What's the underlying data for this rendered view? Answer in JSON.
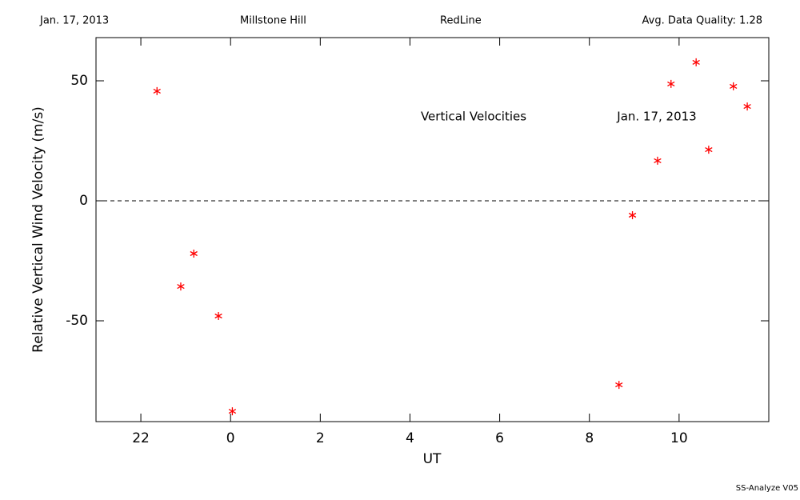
{
  "header": {
    "date": "Jan. 17, 2013",
    "site": "Millstone Hill",
    "line": "RedLine",
    "quality": "Avg. Data Quality: 1.28"
  },
  "footer": "SS-Analyze V05",
  "chart_data": {
    "type": "scatter",
    "x_label": "UT",
    "y_label": "Relative Vertical Wind Velocity (m/s)",
    "annotations": [
      "Vertical Velocities",
      "Jan. 17, 2013"
    ],
    "x": [
      -1.64,
      -1.11,
      -0.82,
      -0.27,
      0.04,
      8.66,
      8.96,
      9.52,
      9.82,
      10.38,
      10.66,
      11.21,
      11.52
    ],
    "values": [
      45.7,
      -35.7,
      -22,
      -48,
      -87.7,
      -76.7,
      -6,
      16.7,
      48.7,
      57.7,
      21.3,
      47.7,
      39.3
    ],
    "color": "#ff0000",
    "xlim": [
      -3,
      12
    ],
    "xticks": [
      {
        "value": -2,
        "label": "22"
      },
      0,
      2,
      4,
      6,
      8,
      10
    ],
    "ylim": [
      -92,
      68
    ],
    "yticks": [
      -50,
      0,
      50
    ],
    "zero_line": true
  }
}
